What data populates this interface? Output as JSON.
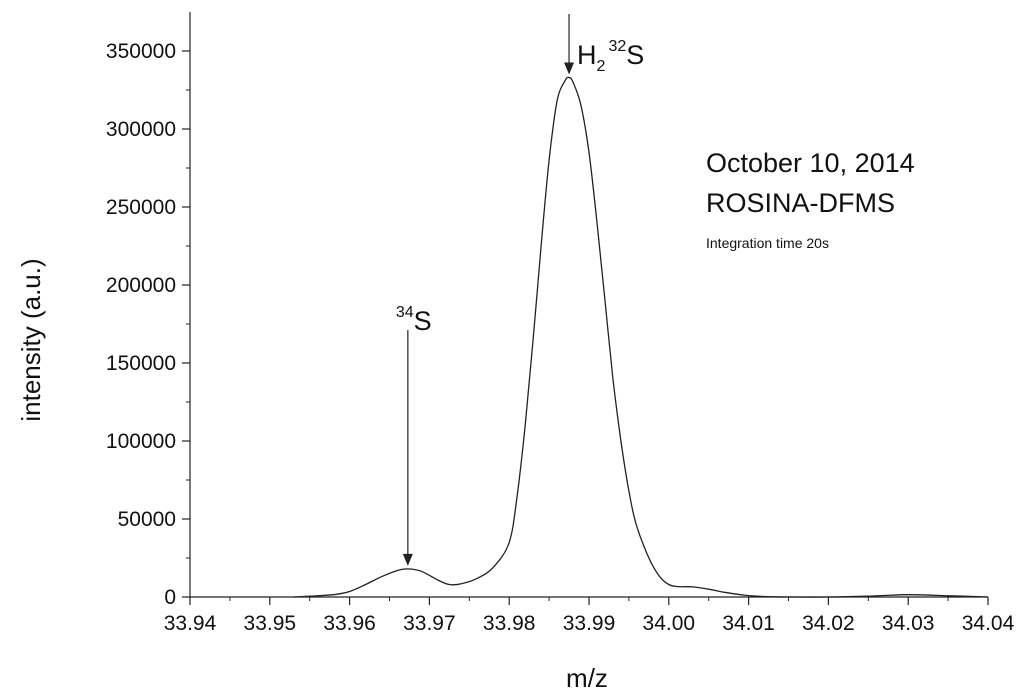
{
  "chart_data": {
    "type": "line",
    "xlabel": "m/z",
    "ylabel": "intensity (a.u.)",
    "xlim": [
      33.94,
      34.04
    ],
    "ylim": [
      0,
      375000
    ],
    "x_ticks": [
      "33.94",
      "33.95",
      "33.96",
      "33.97",
      "33.98",
      "33.99",
      "34.00",
      "34.01",
      "34.02",
      "34.03",
      "34.04"
    ],
    "y_ticks": [
      "0",
      "50000",
      "100000",
      "150000",
      "200000",
      "250000",
      "300000",
      "350000"
    ],
    "annotations": {
      "line1": "October 10, 2014",
      "line2": "ROSINA-DFMS",
      "line3": "Integration time 20s"
    },
    "peaks": [
      {
        "prefix": "",
        "sub": "",
        "sup": "34",
        "suffix": "S",
        "x": 33.9673,
        "y": 18000
      },
      {
        "prefix": "H",
        "sub": "2",
        "sup": "32",
        "suffix": "S",
        "x": 33.9875,
        "y": 333000
      }
    ],
    "series": [
      {
        "x": [
          33.953,
          33.955,
          33.958,
          33.96,
          33.962,
          33.964,
          33.966,
          33.9673,
          33.969,
          33.971,
          33.9725,
          33.974,
          33.976,
          33.978,
          33.98,
          33.981,
          33.982,
          33.983,
          33.984,
          33.985,
          33.986,
          33.987,
          33.9875,
          33.988,
          33.989,
          33.99,
          33.991,
          33.992,
          33.993,
          33.994,
          33.995,
          33.996,
          33.998,
          34.0,
          34.003,
          34.005,
          34.007,
          34.009,
          34.011,
          34.015,
          34.02,
          34.025,
          34.03,
          34.035,
          34.04
        ],
        "y": [
          0,
          500,
          1500,
          3500,
          8000,
          13000,
          17000,
          18000,
          16500,
          11000,
          8000,
          8500,
          12000,
          19000,
          35000,
          65000,
          110000,
          165000,
          225000,
          280000,
          318000,
          331000,
          333000,
          330000,
          315000,
          285000,
          240000,
          190000,
          140000,
          100000,
          68000,
          45000,
          20000,
          8000,
          6500,
          5000,
          3000,
          1500,
          500,
          0,
          0,
          500,
          1500,
          800,
          0
        ]
      }
    ]
  }
}
